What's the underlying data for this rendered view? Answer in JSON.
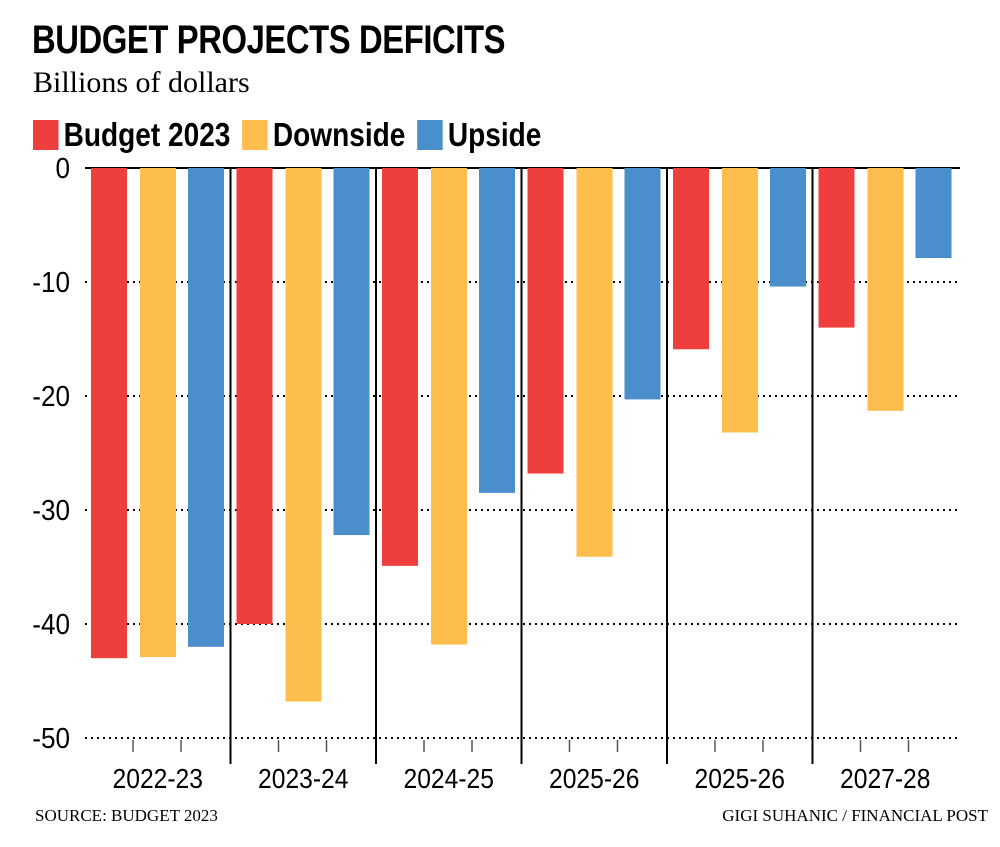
{
  "header": {
    "title": "BUDGET PROJECTS DEFICITS",
    "subtitle": "Billions of dollars"
  },
  "footer": {
    "source": "SOURCE: BUDGET 2023",
    "credit": "GIGI SUHANIC / FINANCIAL POST"
  },
  "chart_data": {
    "type": "bar",
    "title": "BUDGET PROJECTS DEFICITS",
    "subtitle": "Billions of dollars",
    "categories": [
      "2022-23",
      "2023-24",
      "2024-25",
      "2025-26",
      "2025-26",
      "2027-28"
    ],
    "series": [
      {
        "name": "Budget 2023",
        "color": "#ef3e3e",
        "values": [
          -43.0,
          -40.0,
          -34.9,
          -26.8,
          -15.9,
          -14.0
        ]
      },
      {
        "name": "Downside",
        "color": "#fdbe4d",
        "values": [
          -42.9,
          -46.8,
          -41.8,
          -34.1,
          -23.2,
          -21.3
        ]
      },
      {
        "name": "Upside",
        "color": "#4a8ecb",
        "values": [
          -42.0,
          -32.2,
          -28.5,
          -20.3,
          -10.4,
          -7.9
        ]
      }
    ],
    "yticks": [
      "0",
      "-10",
      "-20",
      "-30",
      "-40",
      "-50"
    ],
    "ylim": [
      -50,
      0
    ],
    "grid": "horizontal dotted",
    "legend": "top-left"
  }
}
